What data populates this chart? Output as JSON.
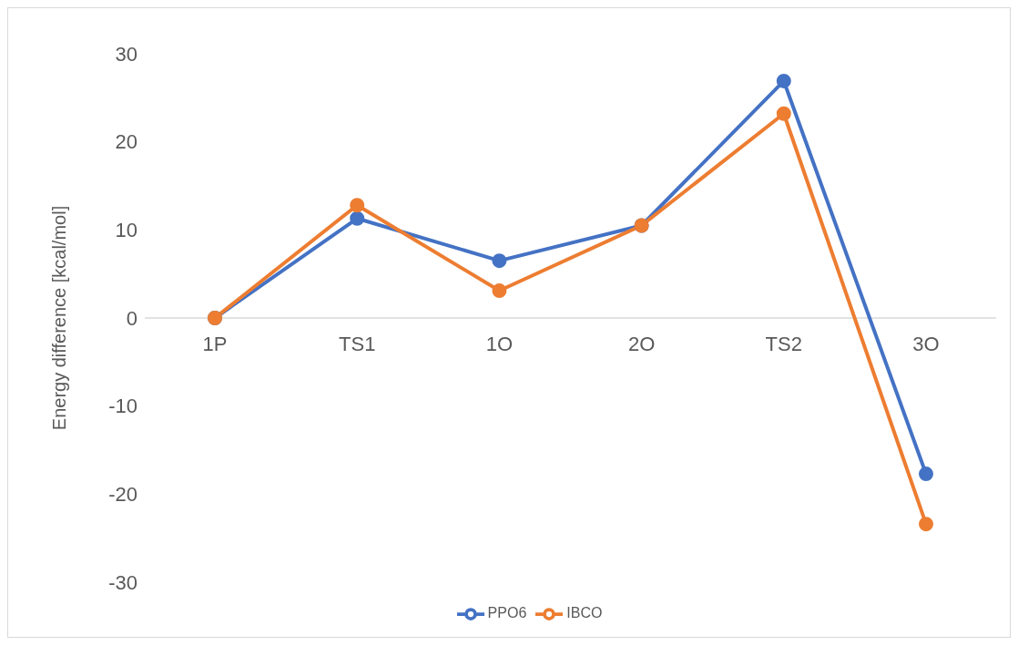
{
  "chart_data": {
    "type": "line",
    "ylabel": "Energy difference [kcal/mol]",
    "categories": [
      "1P",
      "TS1",
      "1O",
      "2O",
      "TS2",
      "3O"
    ],
    "series": [
      {
        "name": "PPO6",
        "color": "#4472c4",
        "values": [
          0,
          11.3,
          6.5,
          10.5,
          26.9,
          -17.7
        ]
      },
      {
        "name": "IBCO",
        "color": "#ed7d31",
        "values": [
          0,
          12.8,
          3.1,
          10.5,
          23.2,
          -23.4
        ]
      }
    ],
    "ylim": [
      -30,
      30
    ],
    "yticks": [
      -30,
      -20,
      -10,
      0,
      10,
      20,
      30
    ],
    "grid": false,
    "legend": "bottom",
    "marker": "circle",
    "line_style": "solid"
  }
}
